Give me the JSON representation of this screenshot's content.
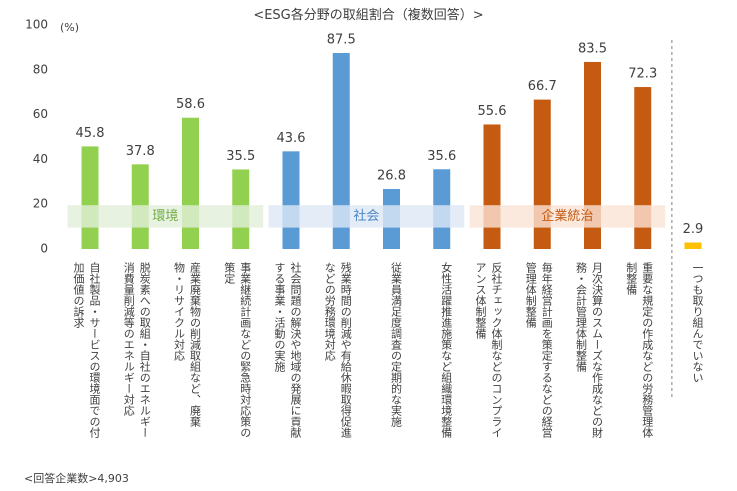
{
  "chart_data": {
    "type": "bar",
    "title": "<ESG各分野の取組割合（複数回答）>",
    "y_unit": "(%)",
    "footnote": "<回答企業数>4,903",
    "ylim": [
      0,
      100
    ],
    "yticks": [
      0,
      20,
      40,
      60,
      80,
      100
    ],
    "grid": false,
    "groups": [
      {
        "label": "環境",
        "color": "#92d050",
        "band_color": "#e2efd9",
        "label_color": "#70ad47",
        "categories": [
          "自社製品・サービスの環境面での付加価値の訴求",
          "脱炭素への取組・自社のエネルギー消費量削減等のエネルギー対応",
          "産業廃棄物の削減取組など、廃棄物・リサイクル対応",
          "事業継続計画などの緊急時対応策の策定"
        ],
        "values": [
          45.8,
          37.8,
          58.6,
          35.5
        ]
      },
      {
        "label": "社会",
        "color": "#5b9bd5",
        "band_color": "#dde8f5",
        "label_color": "#4a86c5",
        "categories": [
          "社会問題の解決や地域の発展に貢献する事業・活動の実施",
          "残業時間の削減や有給休暇取得促進などの労務環境対応",
          "従業員満足度調査の定期的な実施",
          "女性活躍推進施策など組織環境整備"
        ],
        "values": [
          43.6,
          87.5,
          26.8,
          35.6
        ]
      },
      {
        "label": "企業統治",
        "color": "#c55a11",
        "band_color": "#fbe4d6",
        "label_color": "#c55a11",
        "categories": [
          "反社チェック体制などのコンプライアンス体制整備",
          "毎年経営計画を策定するなどの経営管理体制整備",
          "月次決算のスムーズな作成などの財務・会計管理体制整備",
          "重要な規定の作成などの労務管理体制整備"
        ],
        "values": [
          55.6,
          66.7,
          83.5,
          72.3
        ]
      },
      {
        "color": "#ffc000",
        "categories": [
          "一つも取り組んでいない"
        ],
        "values": [
          2.9
        ]
      }
    ]
  }
}
